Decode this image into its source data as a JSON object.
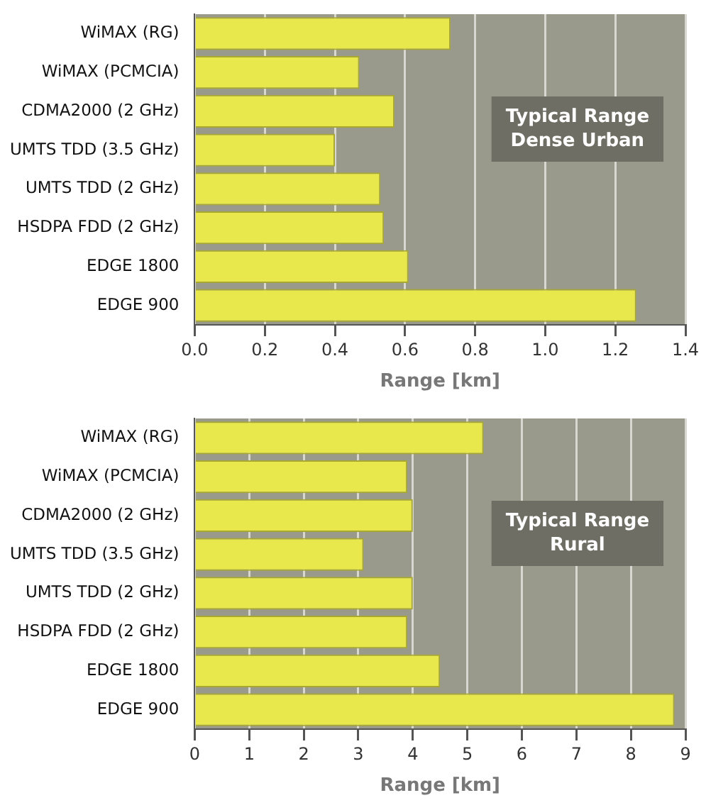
{
  "chart_data": [
    {
      "type": "bar",
      "orientation": "horizontal",
      "categories": [
        "WiMAX (RG)",
        "WiMAX (PCMCIA)",
        "CDMA2000 (2 GHz)",
        "UMTS TDD (3.5 GHz)",
        "UMTS TDD (2 GHz)",
        "HSDPA FDD (2 GHz)",
        "EDGE 1800",
        "EDGE 900"
      ],
      "values": [
        0.73,
        0.47,
        0.57,
        0.4,
        0.53,
        0.54,
        0.61,
        1.26
      ],
      "color": "#e8e84c",
      "xlim": [
        0,
        1.4
      ],
      "xticks": [
        {
          "value": 0,
          "label": "0.0"
        },
        0.2,
        0.4,
        0.6,
        0.8,
        {
          "value": 1,
          "label": "1.0"
        },
        1.2,
        1.4
      ],
      "xlabel": "Range [km]",
      "annotations": [
        "Typical Range\nDense Urban"
      ],
      "grid": "x"
    },
    {
      "type": "bar",
      "orientation": "horizontal",
      "categories": [
        "WiMAX (RG)",
        "WiMAX (PCMCIA)",
        "CDMA2000 (2 GHz)",
        "UMTS TDD (3.5 GHz)",
        "UMTS TDD (2 GHz)",
        "HSDPA FDD (2 GHz)",
        "EDGE 1800",
        "EDGE 900"
      ],
      "values": [
        5.3,
        3.9,
        4.0,
        3.1,
        4.0,
        3.9,
        4.5,
        8.8
      ],
      "color": "#e8e84c",
      "xlim": [
        0,
        9
      ],
      "xticks": [
        0,
        1,
        2,
        3,
        4,
        5,
        6,
        7,
        8,
        9
      ],
      "xlabel": "Range [km]",
      "annotations": [
        "Typical Range\nRural"
      ],
      "grid": "x"
    }
  ]
}
